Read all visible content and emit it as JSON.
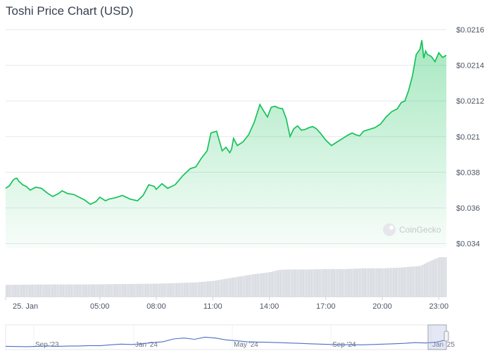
{
  "chart_data": {
    "type": "area",
    "title": "Toshi Price Chart (USD)",
    "y_axis": {
      "side": "right",
      "tick_labels": [
        "$0.0216",
        "$0.0214",
        "$0.0212",
        "$0.021",
        "$0.038",
        "$0.036",
        "$0.034"
      ],
      "grid": true
    },
    "x_axis": {
      "tick_labels": [
        "25. Jan",
        "05:00",
        "08:00",
        "11:00",
        "14:00",
        "17:00",
        "20:00",
        "23:00"
      ],
      "tick_hours": [
        0,
        5,
        8,
        11,
        14,
        17,
        20,
        23
      ]
    },
    "series": [
      {
        "color": "#16c25a",
        "x_hours": [
          0,
          0.2,
          0.4,
          0.5,
          0.6,
          0.7,
          0.9,
          1.1,
          1.3,
          1.6,
          1.9,
          2.2,
          2.5,
          2.8,
          3.0,
          3.3,
          3.6,
          3.9,
          4.2,
          4.5,
          4.8,
          5.0,
          5.3,
          5.5,
          5.8,
          6.2,
          6.6,
          7.0,
          7.3,
          7.6,
          7.9,
          8.0,
          8.3,
          8.6,
          9.0,
          9.4,
          9.8,
          10.1,
          10.4,
          10.7,
          10.9,
          11.2,
          11.5,
          11.7,
          11.9,
          12.0,
          12.1,
          12.3,
          12.6,
          12.9,
          13.2,
          13.5,
          13.7,
          13.9,
          14.1,
          14.3,
          14.5,
          14.7,
          14.9,
          15.1,
          15.3,
          15.5,
          15.7,
          15.9,
          16.1,
          16.3,
          16.5,
          16.7,
          17.0,
          17.3,
          17.6,
          17.9,
          18.2,
          18.4,
          18.6,
          18.8,
          19.0,
          19.3,
          19.6,
          19.9,
          20.2,
          20.5,
          20.8,
          21.0,
          21.2,
          21.4,
          21.6,
          21.8,
          22.0,
          22.1,
          22.2,
          22.3,
          22.4,
          22.6,
          22.8,
          23.0,
          23.2,
          23.4
        ],
        "y_index": [
          1.55,
          1.62,
          1.78,
          1.82,
          1.83,
          1.75,
          1.65,
          1.6,
          1.5,
          1.58,
          1.55,
          1.42,
          1.32,
          1.4,
          1.48,
          1.4,
          1.38,
          1.3,
          1.22,
          1.1,
          1.18,
          1.3,
          1.2,
          1.25,
          1.28,
          1.35,
          1.25,
          1.2,
          1.35,
          1.65,
          1.6,
          1.52,
          1.68,
          1.55,
          1.65,
          1.9,
          2.1,
          2.15,
          2.4,
          2.6,
          3.1,
          3.15,
          2.6,
          2.7,
          2.55,
          2.65,
          2.95,
          2.75,
          2.85,
          3.05,
          3.4,
          3.9,
          3.72,
          3.55,
          3.82,
          3.85,
          3.8,
          3.78,
          3.5,
          3.0,
          3.22,
          3.3,
          3.18,
          3.2,
          3.25,
          3.28,
          3.22,
          3.1,
          2.9,
          2.75,
          2.85,
          2.95,
          3.05,
          3.1,
          3.05,
          3.02,
          3.15,
          3.2,
          3.25,
          3.35,
          3.55,
          3.7,
          3.78,
          3.95,
          4.0,
          4.3,
          4.7,
          5.3,
          5.45,
          5.7,
          5.2,
          5.4,
          5.3,
          5.25,
          5.1,
          5.35,
          5.22,
          5.28
        ]
      }
    ],
    "volume": {
      "color": "#d1d5db",
      "x_hours": [
        0,
        2,
        4,
        6,
        8,
        10,
        11,
        12,
        13,
        14,
        14.5,
        15,
        16,
        17,
        18,
        19,
        20,
        21,
        22,
        22.5,
        23,
        23.4
      ],
      "level": [
        0.3,
        0.31,
        0.31,
        0.32,
        0.33,
        0.36,
        0.4,
        0.48,
        0.56,
        0.62,
        0.68,
        0.69,
        0.69,
        0.7,
        0.7,
        0.72,
        0.72,
        0.74,
        0.78,
        0.9,
        1.0,
        1.0
      ]
    },
    "navigator": {
      "tick_labels": [
        "Sep '23",
        "Jan '24",
        "May '24",
        "Sep '24",
        "Jan '25"
      ],
      "line": [
        0.1,
        0.09,
        0.08,
        0.1,
        0.12,
        0.1,
        0.11,
        0.12,
        0.14,
        0.13,
        0.18,
        0.22,
        0.2,
        0.24,
        0.3,
        0.35,
        0.5,
        0.55,
        0.48,
        0.6,
        0.55,
        0.45,
        0.4,
        0.35,
        0.33,
        0.32,
        0.3,
        0.28,
        0.26,
        0.24,
        0.22,
        0.2,
        0.18,
        0.19,
        0.18,
        0.2,
        0.22,
        0.24,
        0.26,
        0.3,
        0.28,
        0.32,
        0.45
      ]
    },
    "watermark": "CoinGecko",
    "grid": true
  }
}
